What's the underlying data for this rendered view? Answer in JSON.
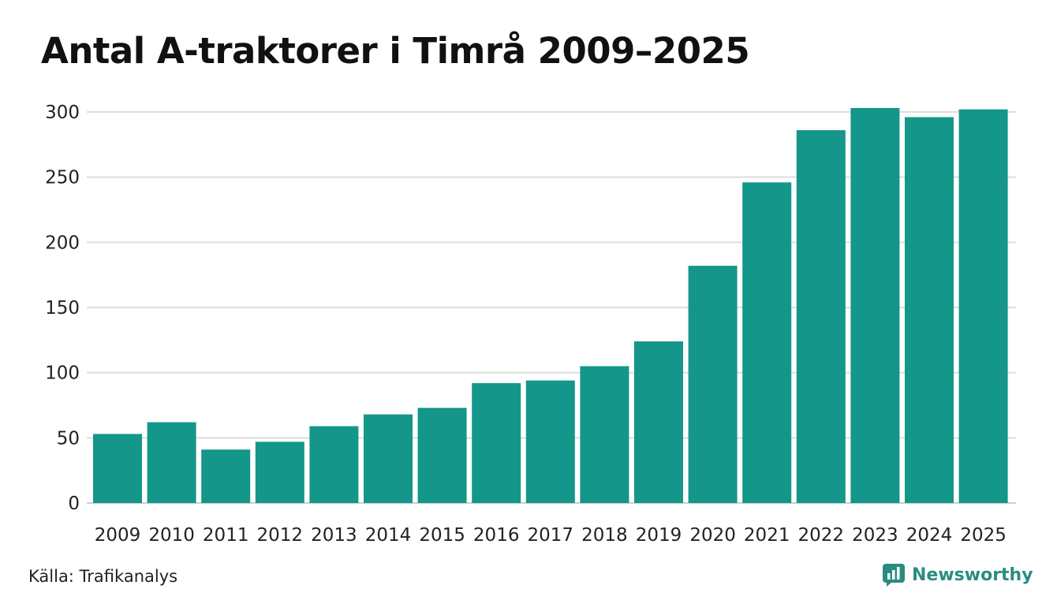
{
  "chart_data": {
    "type": "bar",
    "title": "Antal A-traktorer i Timrå 2009–2025",
    "xlabel": "",
    "ylabel": "",
    "categories": [
      "2009",
      "2010",
      "2011",
      "2012",
      "2013",
      "2014",
      "2015",
      "2016",
      "2017",
      "2018",
      "2019",
      "2020",
      "2021",
      "2022",
      "2023",
      "2024",
      "2025"
    ],
    "values": [
      53,
      62,
      41,
      47,
      59,
      68,
      73,
      92,
      94,
      105,
      124,
      182,
      246,
      286,
      303,
      296,
      302
    ],
    "ylim": [
      0,
      300
    ],
    "yticks": [
      "0",
      "50",
      "100",
      "150",
      "200",
      "250",
      "300"
    ],
    "grid": "horizontal",
    "legend": "none",
    "bar_color": "#14968a"
  },
  "footer": {
    "source": "Källa: Trafikanalys",
    "brand": "Newsworthy",
    "brand_color": "#2a8c80",
    "brand_icon": "newsworthy-logo-icon"
  }
}
